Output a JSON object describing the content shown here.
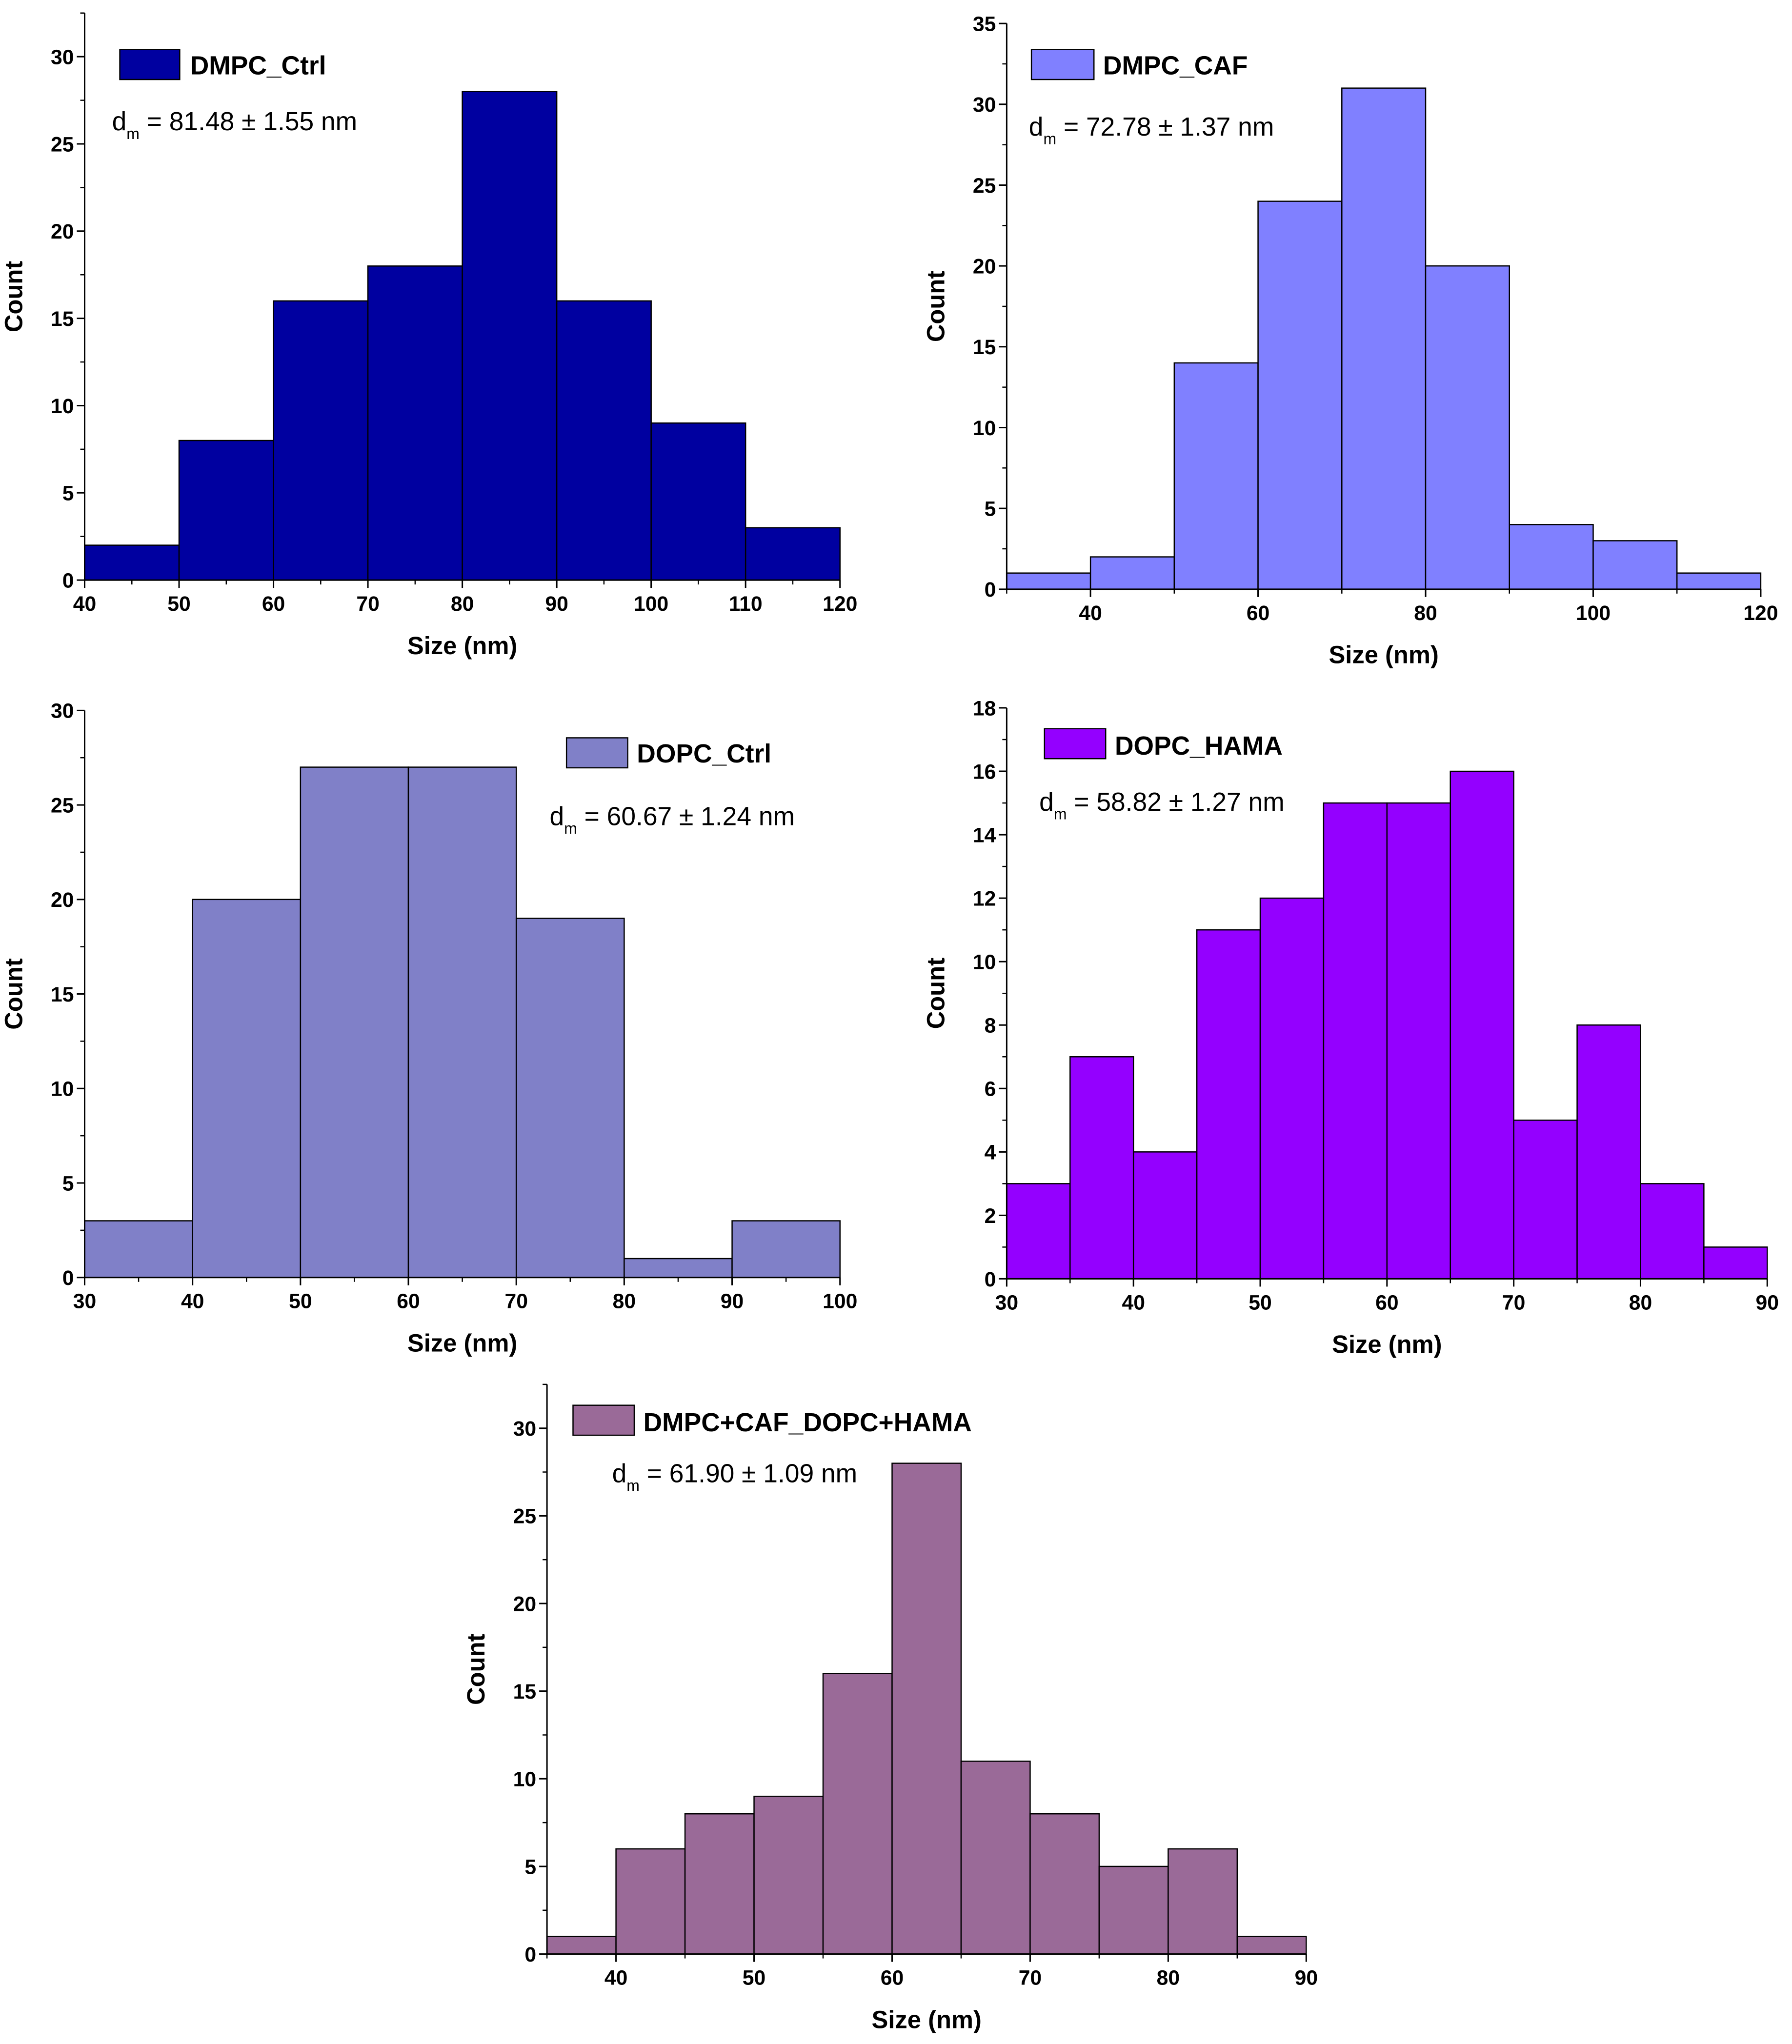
{
  "chart_data": [
    {
      "type": "bar",
      "legend": "DMPC_Ctrl",
      "annotation": {
        "symbol": "d",
        "subscript": "m",
        "text": " = 81.48 ± 1.55 nm"
      },
      "xlabel": "Size (nm)",
      "ylabel": "Count",
      "color": "#0000A0",
      "bin_edges": [
        40,
        50,
        60,
        70,
        80,
        90,
        100,
        110,
        120
      ],
      "values": [
        2,
        8,
        16,
        18,
        28,
        16,
        9,
        3
      ],
      "xlim": [
        40,
        120
      ],
      "ylim": [
        0,
        32.5
      ],
      "xticks": [
        40,
        50,
        60,
        70,
        80,
        90,
        100,
        110,
        120
      ],
      "yticks": [
        0,
        5,
        10,
        15,
        20,
        25,
        30
      ]
    },
    {
      "type": "bar",
      "legend": "DMPC_CAF",
      "annotation": {
        "symbol": "d",
        "subscript": "m",
        "text": " = 72.78 ± 1.37 nm"
      },
      "xlabel": "Size (nm)",
      "ylabel": "Count",
      "color": "#8080FF",
      "bin_edges": [
        30,
        40,
        50,
        60,
        70,
        80,
        90,
        100,
        110,
        120
      ],
      "values": [
        1,
        2,
        14,
        24,
        31,
        20,
        4,
        3,
        1
      ],
      "xlim": [
        30,
        120
      ],
      "ylim": [
        0,
        35
      ],
      "xticks": [
        40,
        60,
        80,
        100,
        120
      ],
      "yticks": [
        0,
        5,
        10,
        15,
        20,
        25,
        30,
        35
      ]
    },
    {
      "type": "bar",
      "legend": "DOPC_Ctrl",
      "annotation": {
        "symbol": "d",
        "subscript": "m",
        "text": " = 60.67 ± 1.24 nm"
      },
      "xlabel": "Size (nm)",
      "ylabel": "Count",
      "color": "#8080C8",
      "bin_edges": [
        30,
        40,
        50,
        60,
        70,
        80,
        90,
        100
      ],
      "values": [
        3,
        20,
        27,
        27,
        19,
        1,
        3
      ],
      "xlim": [
        30,
        100
      ],
      "ylim": [
        0,
        30
      ],
      "xticks": [
        30,
        40,
        50,
        60,
        70,
        80,
        90,
        100
      ],
      "yticks": [
        0,
        5,
        10,
        15,
        20,
        25,
        30
      ]
    },
    {
      "type": "bar",
      "legend": "DOPC_HAMA",
      "annotation": {
        "symbol": "d",
        "subscript": "m",
        "text": " = 58.82 ± 1.27 nm"
      },
      "xlabel": "Size (nm)",
      "ylabel": "Count",
      "color": "#9400FF",
      "bin_edges": [
        30,
        35,
        40,
        45,
        50,
        55,
        60,
        65,
        70,
        75,
        80,
        85,
        90
      ],
      "values": [
        3,
        7,
        4,
        11,
        12,
        15,
        15,
        16,
        5,
        8,
        3,
        1
      ],
      "xlim": [
        30,
        90
      ],
      "ylim": [
        0,
        18
      ],
      "xticks": [
        30,
        40,
        50,
        60,
        70,
        80,
        90
      ],
      "yticks": [
        0,
        2,
        4,
        6,
        8,
        10,
        12,
        14,
        16,
        18
      ]
    },
    {
      "type": "bar",
      "legend": "DMPC+CAF_DOPC+HAMA",
      "annotation": {
        "symbol": "d",
        "subscript": "m",
        "text": " = 61.90 ± 1.09 nm"
      },
      "xlabel": "Size (nm)",
      "ylabel": "Count",
      "color": "#9A6A98",
      "bin_edges": [
        35,
        40,
        45,
        50,
        55,
        60,
        65,
        70,
        75,
        80,
        85,
        90
      ],
      "values": [
        1,
        6,
        8,
        9,
        16,
        28,
        11,
        8,
        5,
        6,
        1
      ],
      "xlim": [
        35,
        90
      ],
      "ylim": [
        0,
        32.5
      ],
      "xticks": [
        40,
        50,
        60,
        70,
        80,
        90
      ],
      "yticks": [
        0,
        5,
        10,
        15,
        20,
        25,
        30
      ]
    }
  ]
}
